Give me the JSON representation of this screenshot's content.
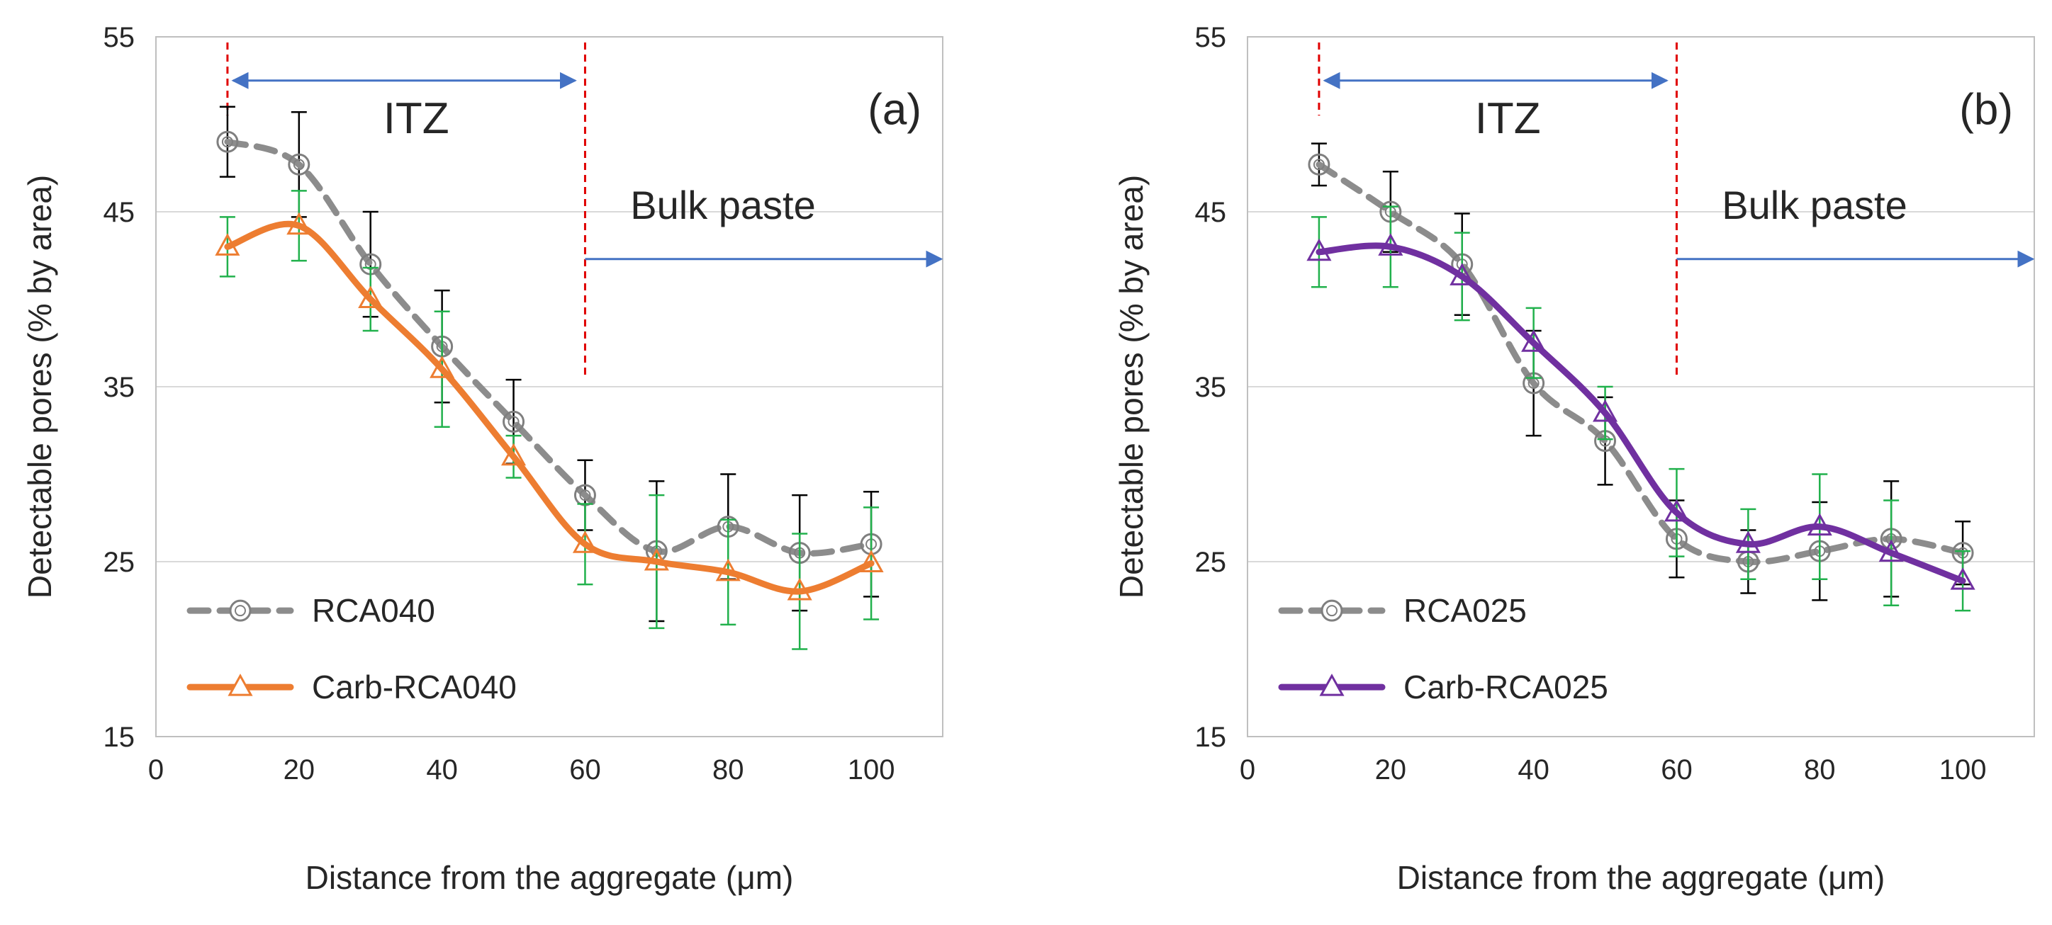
{
  "chart_data": [
    {
      "type": "line",
      "panel_label": "(a)",
      "xlabel": "Distance from the aggregate (μm)",
      "ylabel": "Detectable pores (% by area)",
      "xlim": [
        0,
        110
      ],
      "ylim": [
        15,
        55
      ],
      "xticks": [
        0,
        20,
        40,
        60,
        80,
        100
      ],
      "yticks": [
        15,
        25,
        35,
        45,
        55
      ],
      "xtick_labels": [
        "0",
        "20",
        "40",
        "60",
        "80",
        "100"
      ],
      "ytick_labels": [
        "15",
        "25",
        "35",
        "45",
        "55"
      ],
      "grid": "horizontal",
      "legend_position": "bottom-left",
      "annotations": {
        "itz_label": "ITZ",
        "bulk_label": "Bulk paste",
        "itz_start_x": 10,
        "itz_end_x": 60
      },
      "series": [
        {
          "name": "RCA040",
          "style": "dashed",
          "marker": "circle",
          "color": "#8c8c8c",
          "error_color": "#000000",
          "x": [
            10,
            20,
            30,
            40,
            50,
            60,
            70,
            80,
            90,
            100
          ],
          "y": [
            49.0,
            47.7,
            42.0,
            37.3,
            33.0,
            28.8,
            25.6,
            27.0,
            25.5,
            26.0
          ],
          "err": [
            2.0,
            3.0,
            3.0,
            3.2,
            2.4,
            2.0,
            4.0,
            3.0,
            3.3,
            3.0
          ]
        },
        {
          "name": "Carb-RCA040",
          "style": "solid",
          "marker": "triangle",
          "color": "#ed7d31",
          "error_color": "#21b14c",
          "x": [
            10,
            20,
            30,
            40,
            50,
            60,
            70,
            80,
            90,
            100
          ],
          "y": [
            43.0,
            44.2,
            40.0,
            36.0,
            31.0,
            26.0,
            25.0,
            24.4,
            23.3,
            24.9
          ],
          "err": [
            1.7,
            2.0,
            1.8,
            3.3,
            1.2,
            2.3,
            3.8,
            3.0,
            3.3,
            3.2
          ]
        }
      ]
    },
    {
      "type": "line",
      "panel_label": "(b)",
      "xlabel": "Distance from the aggregate (μm)",
      "ylabel": "Detectable pores (% by area)",
      "xlim": [
        0,
        110
      ],
      "ylim": [
        15,
        55
      ],
      "xticks": [
        0,
        20,
        40,
        60,
        80,
        100
      ],
      "yticks": [
        15,
        25,
        35,
        45,
        55
      ],
      "xtick_labels": [
        "0",
        "20",
        "40",
        "60",
        "80",
        "100"
      ],
      "ytick_labels": [
        "15",
        "25",
        "35",
        "45",
        "55"
      ],
      "grid": "horizontal",
      "legend_position": "bottom-left",
      "annotations": {
        "itz_label": "ITZ",
        "bulk_label": "Bulk paste",
        "itz_start_x": 10,
        "itz_end_x": 60
      },
      "series": [
        {
          "name": "RCA025",
          "style": "dashed",
          "marker": "circle",
          "color": "#8c8c8c",
          "error_color": "#000000",
          "x": [
            10,
            20,
            30,
            40,
            50,
            60,
            70,
            80,
            90,
            100
          ],
          "y": [
            47.7,
            45.0,
            42.0,
            35.2,
            31.9,
            26.3,
            25.0,
            25.6,
            26.3,
            25.5
          ],
          "err": [
            1.2,
            2.3,
            2.9,
            3.0,
            2.5,
            2.2,
            1.8,
            2.8,
            3.3,
            1.8
          ]
        },
        {
          "name": "Carb-RCA025",
          "style": "solid",
          "marker": "triangle",
          "color": "#7030a0",
          "error_color": "#21b14c",
          "x": [
            10,
            20,
            30,
            40,
            50,
            60,
            70,
            80,
            90,
            100
          ],
          "y": [
            42.7,
            43.0,
            41.3,
            37.5,
            33.5,
            27.8,
            26.0,
            27.0,
            25.5,
            23.9
          ],
          "err": [
            2.0,
            2.3,
            2.5,
            2.0,
            1.5,
            2.5,
            2.0,
            3.0,
            3.0,
            1.7
          ]
        }
      ]
    }
  ]
}
